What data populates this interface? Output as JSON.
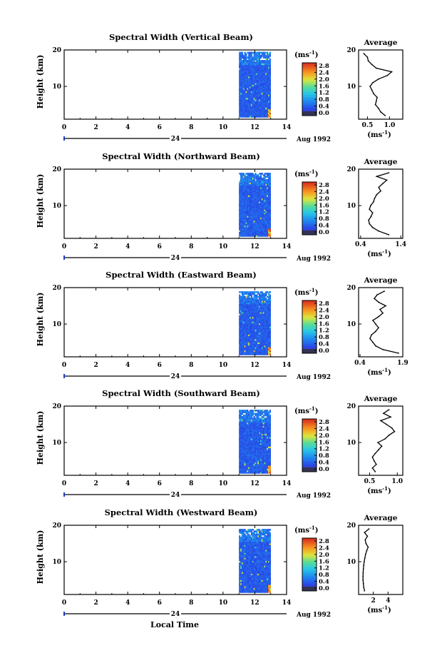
{
  "figure": {
    "xlabel": "Local Time",
    "date_label": "Aug 1992",
    "day_label": "24",
    "ylabel": "Height (km)",
    "avg_title": "Average",
    "avg_xlabel": "(ms",
    "avg_xlabel_sup": "-1",
    "avg_xlabel_end": ")",
    "cbar_unit": "(ms",
    "cbar_unit_sup": "-1",
    "cbar_unit_end": ")"
  },
  "chart_data": [
    {
      "type": "heatmap",
      "title": "Spectral Width (Vertical Beam)",
      "xlabel": "Local Time",
      "ylabel": "Height (km)",
      "xlim": [
        0,
        14
      ],
      "ylim": [
        1,
        20
      ],
      "xticks": [
        "0",
        "2",
        "4",
        "6",
        "8",
        "10",
        "12",
        "14"
      ],
      "yticks": [
        "10",
        "20"
      ],
      "data_time_range": [
        11.0,
        13.0
      ],
      "data_height_range": [
        1.5,
        19.5
      ],
      "colorbar": {
        "min": 0.0,
        "max": 2.8,
        "ticks": [
          "2.8",
          "2.4",
          "2.0",
          "1.6",
          "1.2",
          "0.8",
          "0.4",
          "0.0"
        ]
      },
      "average": {
        "xlim": [
          0.3,
          1.3
        ],
        "xticks": [
          "0.5",
          "1.0"
        ],
        "yticks": [
          "10",
          "20"
        ],
        "height": [
          2,
          3,
          4,
          5,
          6,
          7,
          8,
          9,
          10,
          11,
          12,
          13,
          14,
          15,
          16,
          17,
          18,
          19
        ],
        "value": [
          0.9,
          0.8,
          0.75,
          0.68,
          0.7,
          0.72,
          0.64,
          0.6,
          0.56,
          0.62,
          0.75,
          0.95,
          1.05,
          0.7,
          0.6,
          0.52,
          0.5,
          0.42
        ]
      }
    },
    {
      "type": "heatmap",
      "title": "Spectral Width (Northward Beam)",
      "xlabel": "Local Time",
      "ylabel": "Height (km)",
      "xlim": [
        0,
        14
      ],
      "ylim": [
        1,
        20
      ],
      "xticks": [
        "0",
        "2",
        "4",
        "6",
        "8",
        "10",
        "12",
        "14"
      ],
      "yticks": [
        "10",
        "20"
      ],
      "data_time_range": [
        11.0,
        13.0
      ],
      "data_height_range": [
        1.5,
        19.0
      ],
      "colorbar": {
        "min": 0.0,
        "max": 2.8,
        "ticks": [
          "2.8",
          "2.4",
          "2.0",
          "1.6",
          "1.2",
          "0.8",
          "0.4",
          "0.0"
        ]
      },
      "average": {
        "xlim": [
          0.35,
          1.45
        ],
        "xticks": [
          "0.4",
          "1.4"
        ],
        "yticks": [
          "10",
          "20"
        ],
        "height": [
          2,
          3,
          4,
          5,
          6,
          7,
          8,
          9,
          10,
          11,
          12,
          13,
          14,
          15,
          16,
          17,
          18,
          19
        ],
        "value": [
          1.1,
          0.85,
          0.7,
          0.62,
          0.6,
          0.66,
          0.7,
          0.62,
          0.65,
          0.72,
          0.75,
          0.8,
          0.9,
          0.85,
          0.95,
          1.05,
          0.8,
          1.1
        ]
      }
    },
    {
      "type": "heatmap",
      "title": "Spectral Width (Eastward Beam)",
      "xlabel": "Local Time",
      "ylabel": "Height (km)",
      "xlim": [
        0,
        14
      ],
      "ylim": [
        1,
        20
      ],
      "xticks": [
        "0",
        "2",
        "4",
        "6",
        "8",
        "10",
        "12",
        "14"
      ],
      "yticks": [
        "10",
        "20"
      ],
      "data_time_range": [
        11.0,
        13.0
      ],
      "data_height_range": [
        1.5,
        19.0
      ],
      "colorbar": {
        "min": 0.0,
        "max": 2.8,
        "ticks": [
          "2.8",
          "2.4",
          "2.0",
          "1.6",
          "1.2",
          "0.8",
          "0.4",
          "0.0"
        ]
      },
      "average": {
        "xlim": [
          0.35,
          1.9
        ],
        "xticks": [
          "0.4",
          "1.9"
        ],
        "yticks": [
          "10",
          "20"
        ],
        "height": [
          2,
          3,
          4,
          5,
          6,
          7,
          8,
          9,
          10,
          11,
          12,
          13,
          14,
          15,
          16,
          17,
          18,
          19
        ],
        "value": [
          1.75,
          1.2,
          0.95,
          0.85,
          0.75,
          0.8,
          0.95,
          1.05,
          0.95,
          0.85,
          1.05,
          1.2,
          1.1,
          1.3,
          1.05,
          0.9,
          1.0,
          1.25
        ]
      }
    },
    {
      "type": "heatmap",
      "title": "Spectral Width (Southward Beam)",
      "xlabel": "Local Time",
      "ylabel": "Height (km)",
      "xlim": [
        0,
        14
      ],
      "ylim": [
        1,
        20
      ],
      "xticks": [
        "0",
        "2",
        "4",
        "6",
        "8",
        "10",
        "12",
        "14"
      ],
      "yticks": [
        "10",
        "20"
      ],
      "data_time_range": [
        11.0,
        13.0
      ],
      "data_height_range": [
        1.5,
        19.0
      ],
      "colorbar": {
        "min": 0.0,
        "max": 2.8,
        "ticks": [
          "2.8",
          "2.4",
          "2.0",
          "1.6",
          "1.2",
          "0.8",
          "0.4",
          "0.0"
        ]
      },
      "average": {
        "xlim": [
          0.3,
          1.1
        ],
        "xticks": [
          "0.5",
          "1.0"
        ],
        "yticks": [
          "10",
          "20"
        ],
        "height": [
          2,
          3,
          4,
          5,
          6,
          7,
          8,
          9,
          10,
          11,
          12,
          13,
          14,
          15,
          16,
          17,
          18,
          19
        ],
        "value": [
          0.6,
          0.55,
          0.62,
          0.58,
          0.55,
          0.6,
          0.66,
          0.72,
          0.65,
          0.78,
          0.85,
          0.95,
          0.9,
          0.8,
          0.7,
          0.88,
          0.75,
          0.85
        ]
      }
    },
    {
      "type": "heatmap",
      "title": "Spectral Width (Westward Beam)",
      "xlabel": "Local Time",
      "ylabel": "Height (km)",
      "xlim": [
        0,
        14
      ],
      "ylim": [
        1,
        20
      ],
      "xticks": [
        "0",
        "2",
        "4",
        "6",
        "8",
        "10",
        "12",
        "14"
      ],
      "yticks": [
        "10",
        "20"
      ],
      "data_time_range": [
        11.0,
        13.0
      ],
      "data_height_range": [
        1.5,
        19.0
      ],
      "colorbar": {
        "min": 0.0,
        "max": 2.8,
        "ticks": [
          "2.8",
          "2.4",
          "2.0",
          "1.6",
          "1.2",
          "0.8",
          "0.4",
          "0.0"
        ]
      },
      "average": {
        "xlim": [
          0.0,
          6.0
        ],
        "xticks": [
          "2",
          "4"
        ],
        "yticks": [
          "10",
          "20"
        ],
        "height": [
          2,
          3,
          4,
          5,
          6,
          7,
          8,
          9,
          10,
          11,
          12,
          13,
          14,
          15,
          16,
          17,
          18,
          19
        ],
        "value": [
          0.8,
          0.7,
          0.65,
          0.6,
          0.6,
          0.62,
          0.65,
          0.7,
          0.75,
          0.85,
          0.95,
          1.1,
          1.3,
          1.0,
          0.9,
          1.2,
          0.8,
          1.4
        ]
      }
    }
  ]
}
